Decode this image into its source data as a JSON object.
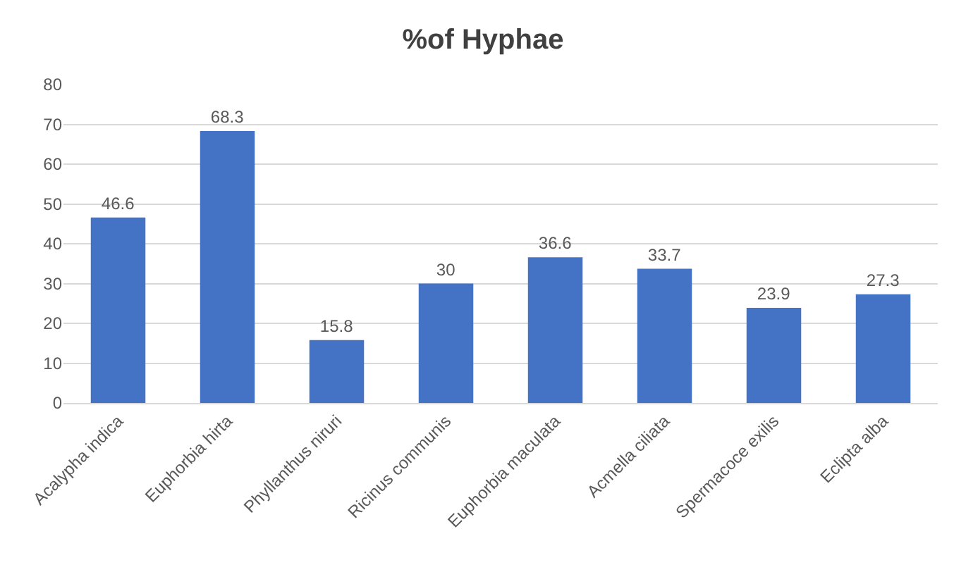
{
  "chart_data": {
    "type": "bar",
    "title": "%of Hyphae",
    "categories": [
      "Acalypha indica",
      "Euphorbia hirta",
      "Phyllanthus niruri",
      "Ricinus communis",
      "Euphorbia maculata",
      "Acmella ciliata",
      "Spermacoce exilis",
      "Eclipta alba"
    ],
    "values": [
      46.6,
      68.3,
      15.8,
      30,
      36.6,
      33.7,
      23.9,
      27.3
    ],
    "color": "#4472c4",
    "ylim": [
      0,
      80
    ],
    "yticks": [
      0,
      10,
      20,
      30,
      40,
      50,
      60,
      70,
      80
    ],
    "grid": "y",
    "data_labels": true
  }
}
